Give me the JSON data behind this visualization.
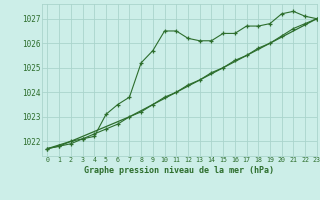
{
  "title": "Graphe pression niveau de la mer (hPa)",
  "bg_color": "#cceee8",
  "grid_color": "#aad4cc",
  "line_color": "#2d6e2d",
  "xlim": [
    -0.5,
    23
  ],
  "ylim": [
    1021.4,
    1027.6
  ],
  "yticks": [
    1022,
    1023,
    1024,
    1025,
    1026,
    1027
  ],
  "xticks": [
    0,
    1,
    2,
    3,
    4,
    5,
    6,
    7,
    8,
    9,
    10,
    11,
    12,
    13,
    14,
    15,
    16,
    17,
    18,
    19,
    20,
    21,
    22,
    23
  ],
  "series1": [
    1021.7,
    1021.8,
    1021.9,
    1022.1,
    1022.2,
    1023.1,
    1023.5,
    1023.8,
    1025.2,
    1025.7,
    1026.5,
    1026.5,
    1026.2,
    1026.1,
    1026.1,
    1026.4,
    1026.4,
    1026.7,
    1026.7,
    1026.8,
    1027.2,
    1027.3,
    1027.1,
    1027.0
  ],
  "series2": [
    1021.7,
    1021.8,
    1022.0,
    1022.1,
    1022.3,
    1022.5,
    1022.7,
    1023.0,
    1023.2,
    1023.5,
    1023.8,
    1024.0,
    1024.3,
    1024.5,
    1024.8,
    1025.0,
    1025.3,
    1025.5,
    1025.8,
    1026.0,
    1026.3,
    1026.6,
    1026.8,
    1027.0
  ],
  "series3": [
    1021.7,
    1021.85,
    1022.0,
    1022.2,
    1022.4,
    1022.6,
    1022.8,
    1023.0,
    1023.25,
    1023.5,
    1023.75,
    1024.0,
    1024.25,
    1024.5,
    1024.75,
    1025.0,
    1025.25,
    1025.5,
    1025.75,
    1026.0,
    1026.25,
    1026.5,
    1026.75,
    1027.0
  ]
}
